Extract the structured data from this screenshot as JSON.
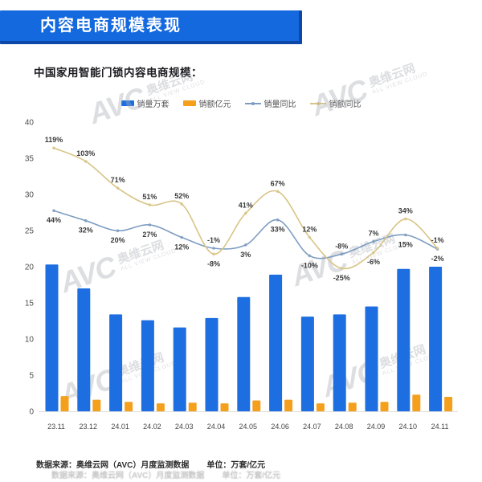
{
  "header": {
    "title": "内容电商规模表现"
  },
  "subtitle": "中国家用智能门锁内容电商规模：",
  "watermark": {
    "brand": "AVC",
    "cn": "奥维云网",
    "en": "ALL VIEW CLOUD"
  },
  "footer": {
    "source": "数据来源：奥维云网（AVC）月度监测数据",
    "unit": "单位：万套/亿元"
  },
  "colors": {
    "banner_blue": "#1569de",
    "banner_shadow": "#0d47a8",
    "bar_blue": "#1d6ee0",
    "bar_orange": "#f5a01d",
    "line_blue": "#7e9dc2",
    "line_tan": "#d8c486"
  },
  "chart_data": {
    "type": "bar",
    "subtype": "combo bar+line, lines on hidden percent axis",
    "title": "中国家用智能门锁内容电商规模：",
    "categories": [
      "23.11",
      "23.12",
      "24.01",
      "24.02",
      "24.03",
      "24.04",
      "24.05",
      "24.06",
      "24.07",
      "24.08",
      "24.09",
      "24.10",
      "24.11"
    ],
    "y_axis": {
      "min": 0,
      "max": 40,
      "step": 5,
      "side": "left"
    },
    "percent_axis_visible": false,
    "grid": false,
    "legend_position": "top-center",
    "series": [
      {
        "id": "sales-volume",
        "name": "销量万套",
        "type": "bar",
        "color": "#1d6ee0",
        "values": [
          20.3,
          17.0,
          13.4,
          12.6,
          11.6,
          12.9,
          15.8,
          18.9,
          13.1,
          13.4,
          14.5,
          19.7,
          20.0
        ]
      },
      {
        "id": "sales-value",
        "name": "销额亿元",
        "type": "bar",
        "color": "#f5a01d",
        "values": [
          2.1,
          1.6,
          1.3,
          1.1,
          1.2,
          1.1,
          1.5,
          1.6,
          1.1,
          1.2,
          1.3,
          2.3,
          2.0
        ]
      },
      {
        "id": "volume-yoy",
        "name": "销量同比",
        "type": "line",
        "color": "#7e9dc2",
        "values": [
          44,
          32,
          20,
          27,
          12,
          -1,
          3,
          33,
          -10,
          -8,
          7,
          15,
          -2
        ],
        "label_pos": [
          "below",
          "below",
          "below",
          "below",
          "below",
          "above",
          "below",
          "below",
          "below",
          "above",
          "above",
          "below",
          "below"
        ]
      },
      {
        "id": "value-yoy",
        "name": "销额同比",
        "type": "line",
        "color": "#d8c486",
        "values": [
          119,
          103,
          71,
          51,
          52,
          -8,
          41,
          67,
          12,
          -25,
          -6,
          34,
          -1
        ],
        "label_pos": [
          "above",
          "above",
          "above",
          "above",
          "above",
          "below",
          "above",
          "above",
          "above",
          "below",
          "below",
          "above",
          "above"
        ]
      }
    ]
  }
}
